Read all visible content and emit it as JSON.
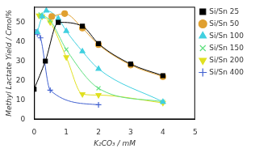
{
  "chart_data": {
    "type": "scatter",
    "x_label": "K₂CO₃ / mM",
    "y_label": "Methyl Lactate Yield / Cmol%",
    "xlim": [
      0,
      5
    ],
    "xticks": [
      0,
      1,
      2,
      3,
      4,
      5
    ],
    "ylim": [
      0,
      58
    ],
    "yticks": [
      0,
      10,
      20,
      30,
      40,
      50
    ],
    "grid": false,
    "legend": "right",
    "line_style": "solid",
    "series": [
      {
        "name": "Si/Sn 25",
        "color": "#000000",
        "marker": "square",
        "x": [
          0,
          0.35,
          0.75,
          1.5,
          2,
          3,
          4
        ],
        "values": [
          15.5,
          30,
          50,
          48,
          39,
          28.5,
          22.5
        ]
      },
      {
        "name": "Si/Sn 50",
        "color": "#e0a030",
        "marker": "circle",
        "x": [
          0.55,
          0.95,
          1.5,
          2,
          3,
          4
        ],
        "values": [
          53,
          54.5,
          47,
          38.5,
          28,
          22
        ]
      },
      {
        "name": "Si/Sn 100",
        "color": "#40d0e0",
        "marker": "triangle",
        "x": [
          0.1,
          0.25,
          0.38,
          0.75,
          1,
          1.5,
          2,
          4
        ],
        "values": [
          45,
          53,
          56,
          52,
          45.5,
          35,
          26,
          9
        ]
      },
      {
        "name": "Si/Sn 150",
        "color": "#60e080",
        "marker": "x",
        "x": [
          0.2,
          0.5,
          1,
          2,
          4
        ],
        "values": [
          54,
          51,
          36,
          16,
          9
        ]
      },
      {
        "name": "Si/Sn 200",
        "color": "#e0e020",
        "marker": "triangle_down",
        "x": [
          0.15,
          0.25,
          0.5,
          1,
          1.5,
          2,
          4
        ],
        "values": [
          53.5,
          53,
          50,
          32,
          13,
          12.5,
          8.5
        ]
      },
      {
        "name": "Si/Sn 400",
        "color": "#4060d0",
        "marker": "plus",
        "x": [
          0.05,
          0.1,
          0.2,
          0.5,
          2
        ],
        "values": [
          45,
          44,
          42,
          15,
          7.5
        ]
      }
    ]
  }
}
